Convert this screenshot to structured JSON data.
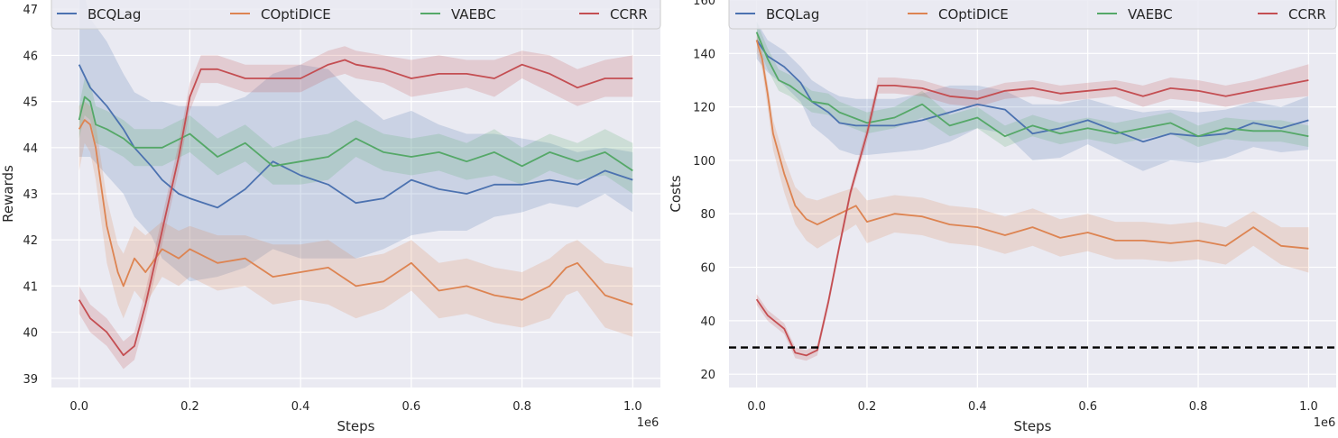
{
  "chart_data": [
    {
      "type": "line",
      "xlabel": "Steps",
      "ylabel": "Rewards",
      "x_offset_label": "1e6",
      "xlim": [
        -0.05,
        1.05
      ],
      "ylim": [
        38.8,
        47.2
      ],
      "xticks": [
        0.0,
        0.2,
        0.4,
        0.6,
        0.8,
        1.0
      ],
      "xtick_labels": [
        "0.0",
        "0.2",
        "0.4",
        "0.6",
        "0.8",
        "1.0"
      ],
      "yticks": [
        39,
        40,
        41,
        42,
        43,
        44,
        45,
        46,
        47
      ],
      "ytick_labels": [
        "39",
        "40",
        "41",
        "42",
        "43",
        "44",
        "45",
        "46",
        "47"
      ],
      "grid": true,
      "legend_position": "top",
      "shaded_band": "mean ± spread",
      "series": [
        {
          "name": "BCQLag",
          "color": "#4c72b0",
          "x": [
            0.0,
            0.02,
            0.05,
            0.08,
            0.1,
            0.13,
            0.15,
            0.18,
            0.2,
            0.25,
            0.3,
            0.35,
            0.4,
            0.45,
            0.5,
            0.55,
            0.6,
            0.65,
            0.7,
            0.75,
            0.8,
            0.85,
            0.9,
            0.95,
            1.0
          ],
          "y": [
            45.8,
            45.3,
            44.9,
            44.4,
            44.0,
            43.6,
            43.3,
            43.0,
            42.9,
            42.7,
            43.1,
            43.7,
            43.4,
            43.2,
            42.8,
            42.9,
            43.3,
            43.1,
            43.0,
            43.2,
            43.2,
            43.3,
            43.2,
            43.5,
            43.3
          ],
          "upper": [
            47.8,
            46.8,
            46.3,
            45.6,
            45.2,
            45.0,
            45.0,
            44.9,
            44.9,
            44.9,
            45.1,
            45.6,
            45.8,
            45.7,
            45.1,
            44.6,
            44.8,
            44.5,
            44.3,
            44.3,
            44.2,
            44.1,
            43.9,
            44.0,
            43.9
          ],
          "lower": [
            43.8,
            43.8,
            43.4,
            43.0,
            42.5,
            42.1,
            41.6,
            41.3,
            41.1,
            41.2,
            41.4,
            41.8,
            41.6,
            41.6,
            41.6,
            41.8,
            42.1,
            42.2,
            42.2,
            42.5,
            42.6,
            42.8,
            42.7,
            43.0,
            42.6
          ]
        },
        {
          "name": "COptiDICE",
          "color": "#dd8452",
          "x": [
            0.0,
            0.01,
            0.02,
            0.03,
            0.05,
            0.07,
            0.08,
            0.1,
            0.12,
            0.15,
            0.18,
            0.2,
            0.25,
            0.3,
            0.35,
            0.4,
            0.45,
            0.5,
            0.55,
            0.6,
            0.65,
            0.7,
            0.75,
            0.8,
            0.85,
            0.88,
            0.9,
            0.95,
            1.0
          ],
          "y": [
            44.4,
            44.6,
            44.5,
            44.0,
            42.3,
            41.3,
            41.0,
            41.6,
            41.3,
            41.8,
            41.6,
            41.8,
            41.5,
            41.6,
            41.2,
            41.3,
            41.4,
            41.0,
            41.1,
            41.5,
            40.9,
            41.0,
            40.8,
            40.7,
            41.0,
            41.4,
            41.5,
            40.8,
            40.6
          ],
          "upper": [
            44.9,
            45.0,
            44.9,
            44.5,
            42.9,
            41.9,
            41.7,
            42.3,
            42.1,
            42.4,
            42.2,
            42.3,
            42.1,
            42.1,
            41.9,
            41.9,
            42.0,
            41.6,
            41.7,
            42.0,
            41.5,
            41.6,
            41.4,
            41.3,
            41.6,
            41.9,
            42.0,
            41.5,
            41.4
          ],
          "lower": [
            43.5,
            44.1,
            43.9,
            43.3,
            41.5,
            40.6,
            40.3,
            40.9,
            40.6,
            41.2,
            41.0,
            41.2,
            40.9,
            41.0,
            40.6,
            40.7,
            40.6,
            40.3,
            40.5,
            40.9,
            40.3,
            40.4,
            40.2,
            40.1,
            40.3,
            40.8,
            40.9,
            40.1,
            39.9
          ]
        },
        {
          "name": "VAEBC",
          "color": "#55a868",
          "x": [
            0.0,
            0.01,
            0.02,
            0.03,
            0.05,
            0.08,
            0.1,
            0.15,
            0.2,
            0.25,
            0.3,
            0.35,
            0.4,
            0.45,
            0.5,
            0.55,
            0.6,
            0.65,
            0.7,
            0.75,
            0.8,
            0.85,
            0.9,
            0.95,
            1.0
          ],
          "y": [
            44.6,
            45.1,
            45.0,
            44.5,
            44.4,
            44.2,
            44.0,
            44.0,
            44.3,
            43.8,
            44.1,
            43.6,
            43.7,
            43.8,
            44.2,
            43.9,
            43.8,
            43.9,
            43.7,
            43.9,
            43.6,
            43.9,
            43.7,
            43.9,
            43.5
          ],
          "upper": [
            44.9,
            45.5,
            45.4,
            44.9,
            44.8,
            44.6,
            44.4,
            44.4,
            44.7,
            44.2,
            44.5,
            44.0,
            44.2,
            44.3,
            44.6,
            44.3,
            44.2,
            44.3,
            44.1,
            44.4,
            44.0,
            44.3,
            44.1,
            44.4,
            44.1
          ],
          "lower": [
            44.2,
            44.7,
            44.6,
            44.1,
            44.0,
            43.8,
            43.6,
            43.6,
            43.9,
            43.4,
            43.7,
            43.2,
            43.2,
            43.3,
            43.8,
            43.5,
            43.4,
            43.5,
            43.3,
            43.4,
            43.2,
            43.5,
            43.3,
            43.4,
            43.0
          ]
        },
        {
          "name": "CCRR",
          "color": "#c44e52",
          "x": [
            0.0,
            0.02,
            0.05,
            0.08,
            0.1,
            0.12,
            0.15,
            0.18,
            0.2,
            0.22,
            0.25,
            0.3,
            0.35,
            0.4,
            0.45,
            0.48,
            0.5,
            0.55,
            0.6,
            0.65,
            0.7,
            0.75,
            0.8,
            0.85,
            0.9,
            0.95,
            1.0
          ],
          "y": [
            40.7,
            40.3,
            40.0,
            39.5,
            39.7,
            40.6,
            42.2,
            43.8,
            45.1,
            45.7,
            45.7,
            45.5,
            45.5,
            45.5,
            45.8,
            45.9,
            45.8,
            45.7,
            45.5,
            45.6,
            45.6,
            45.5,
            45.8,
            45.6,
            45.3,
            45.5,
            45.5
          ],
          "upper": [
            41.0,
            40.6,
            40.3,
            39.8,
            40.0,
            40.9,
            42.5,
            44.1,
            45.4,
            46.0,
            46.0,
            45.8,
            45.8,
            45.8,
            46.1,
            46.2,
            46.1,
            46.0,
            45.9,
            46.0,
            45.9,
            45.9,
            46.1,
            46.0,
            45.7,
            45.9,
            46.0
          ],
          "lower": [
            40.4,
            40.0,
            39.7,
            39.2,
            39.4,
            40.3,
            41.9,
            43.5,
            44.8,
            45.4,
            45.4,
            45.2,
            45.2,
            45.2,
            45.5,
            45.6,
            45.5,
            45.4,
            45.1,
            45.2,
            45.3,
            45.1,
            45.5,
            45.2,
            44.9,
            45.1,
            45.1
          ]
        }
      ]
    },
    {
      "type": "line",
      "xlabel": "Steps",
      "ylabel": "Costs",
      "x_offset_label": "1e6",
      "xlim": [
        -0.05,
        1.05
      ],
      "ylim": [
        15,
        160
      ],
      "xticks": [
        0.0,
        0.2,
        0.4,
        0.6,
        0.8,
        1.0
      ],
      "xtick_labels": [
        "0.0",
        "0.2",
        "0.4",
        "0.6",
        "0.8",
        "1.0"
      ],
      "yticks": [
        20,
        40,
        60,
        80,
        100,
        120,
        140,
        160
      ],
      "ytick_labels": [
        "20",
        "40",
        "60",
        "80",
        "100",
        "120",
        "140",
        "160"
      ],
      "grid": true,
      "legend_position": "top",
      "threshold": {
        "y": 30,
        "style": "dashed",
        "color": "#000000"
      },
      "series": [
        {
          "name": "BCQLag",
          "color": "#4c72b0",
          "x": [
            0.0,
            0.02,
            0.05,
            0.08,
            0.1,
            0.13,
            0.15,
            0.18,
            0.2,
            0.25,
            0.3,
            0.35,
            0.4,
            0.45,
            0.5,
            0.55,
            0.6,
            0.65,
            0.7,
            0.75,
            0.8,
            0.85,
            0.9,
            0.95,
            1.0
          ],
          "y": [
            145,
            139,
            135,
            129,
            122,
            118,
            114,
            113,
            113,
            113,
            115,
            118,
            121,
            119,
            110,
            112,
            115,
            111,
            107,
            110,
            109,
            110,
            114,
            112,
            115
          ],
          "upper": [
            152,
            145,
            141,
            135,
            130,
            126,
            124,
            123,
            123,
            123,
            125,
            128,
            128,
            126,
            121,
            121,
            123,
            120,
            118,
            119,
            118,
            119,
            122,
            120,
            124
          ],
          "lower": [
            138,
            133,
            128,
            122,
            113,
            108,
            104,
            102,
            102,
            103,
            104,
            107,
            112,
            110,
            100,
            101,
            106,
            101,
            96,
            100,
            99,
            101,
            105,
            103,
            104
          ]
        },
        {
          "name": "COptiDICE",
          "color": "#dd8452",
          "x": [
            0.0,
            0.01,
            0.02,
            0.03,
            0.05,
            0.07,
            0.09,
            0.11,
            0.15,
            0.18,
            0.2,
            0.25,
            0.3,
            0.35,
            0.4,
            0.45,
            0.5,
            0.55,
            0.6,
            0.65,
            0.7,
            0.75,
            0.8,
            0.85,
            0.9,
            0.95,
            1.0
          ],
          "y": [
            145,
            138,
            125,
            110,
            95,
            83,
            78,
            76,
            80,
            83,
            77,
            80,
            79,
            76,
            75,
            72,
            75,
            71,
            73,
            70,
            70,
            69,
            70,
            68,
            75,
            68,
            67
          ],
          "upper": [
            148,
            141,
            129,
            115,
            101,
            90,
            86,
            85,
            88,
            90,
            85,
            87,
            86,
            83,
            82,
            79,
            82,
            78,
            80,
            77,
            77,
            76,
            77,
            75,
            81,
            75,
            75
          ],
          "lower": [
            141,
            134,
            120,
            104,
            88,
            76,
            70,
            67,
            72,
            76,
            69,
            73,
            72,
            69,
            68,
            65,
            68,
            64,
            66,
            63,
            63,
            62,
            63,
            61,
            68,
            61,
            58
          ]
        },
        {
          "name": "VAEBC",
          "color": "#55a868",
          "x": [
            0.0,
            0.02,
            0.04,
            0.06,
            0.08,
            0.1,
            0.13,
            0.15,
            0.2,
            0.25,
            0.3,
            0.35,
            0.4,
            0.45,
            0.5,
            0.55,
            0.6,
            0.65,
            0.7,
            0.75,
            0.8,
            0.85,
            0.9,
            0.95,
            1.0
          ],
          "y": [
            148,
            138,
            130,
            128,
            125,
            122,
            121,
            118,
            114,
            116,
            121,
            113,
            116,
            109,
            113,
            110,
            112,
            110,
            112,
            114,
            109,
            112,
            111,
            111,
            109
          ],
          "upper": [
            152,
            142,
            134,
            132,
            129,
            126,
            125,
            122,
            118,
            120,
            126,
            117,
            120,
            113,
            117,
            114,
            116,
            114,
            116,
            118,
            113,
            116,
            115,
            115,
            113
          ],
          "lower": [
            144,
            134,
            126,
            124,
            121,
            118,
            117,
            114,
            110,
            112,
            116,
            109,
            112,
            105,
            109,
            106,
            108,
            106,
            108,
            110,
            105,
            108,
            107,
            107,
            105
          ]
        },
        {
          "name": "CCRR",
          "color": "#c44e52",
          "x": [
            0.0,
            0.02,
            0.05,
            0.07,
            0.09,
            0.11,
            0.13,
            0.15,
            0.17,
            0.2,
            0.22,
            0.25,
            0.3,
            0.35,
            0.4,
            0.45,
            0.5,
            0.55,
            0.6,
            0.65,
            0.7,
            0.75,
            0.8,
            0.85,
            0.9,
            0.95,
            1.0
          ],
          "y": [
            48,
            42,
            37,
            28,
            27,
            29,
            47,
            68,
            88,
            110,
            128,
            128,
            127,
            124,
            123,
            126,
            127,
            125,
            126,
            127,
            124,
            127,
            126,
            124,
            126,
            128,
            130
          ],
          "upper": [
            50,
            44,
            39,
            30,
            29,
            31,
            49,
            70,
            90,
            113,
            131,
            131,
            130,
            127,
            126,
            129,
            130,
            128,
            129,
            130,
            128,
            131,
            130,
            128,
            130,
            133,
            136
          ],
          "lower": [
            46,
            40,
            35,
            26,
            25,
            27,
            45,
            66,
            86,
            107,
            125,
            125,
            124,
            121,
            120,
            123,
            124,
            122,
            123,
            124,
            120,
            123,
            122,
            120,
            122,
            123,
            124
          ]
        }
      ]
    }
  ]
}
